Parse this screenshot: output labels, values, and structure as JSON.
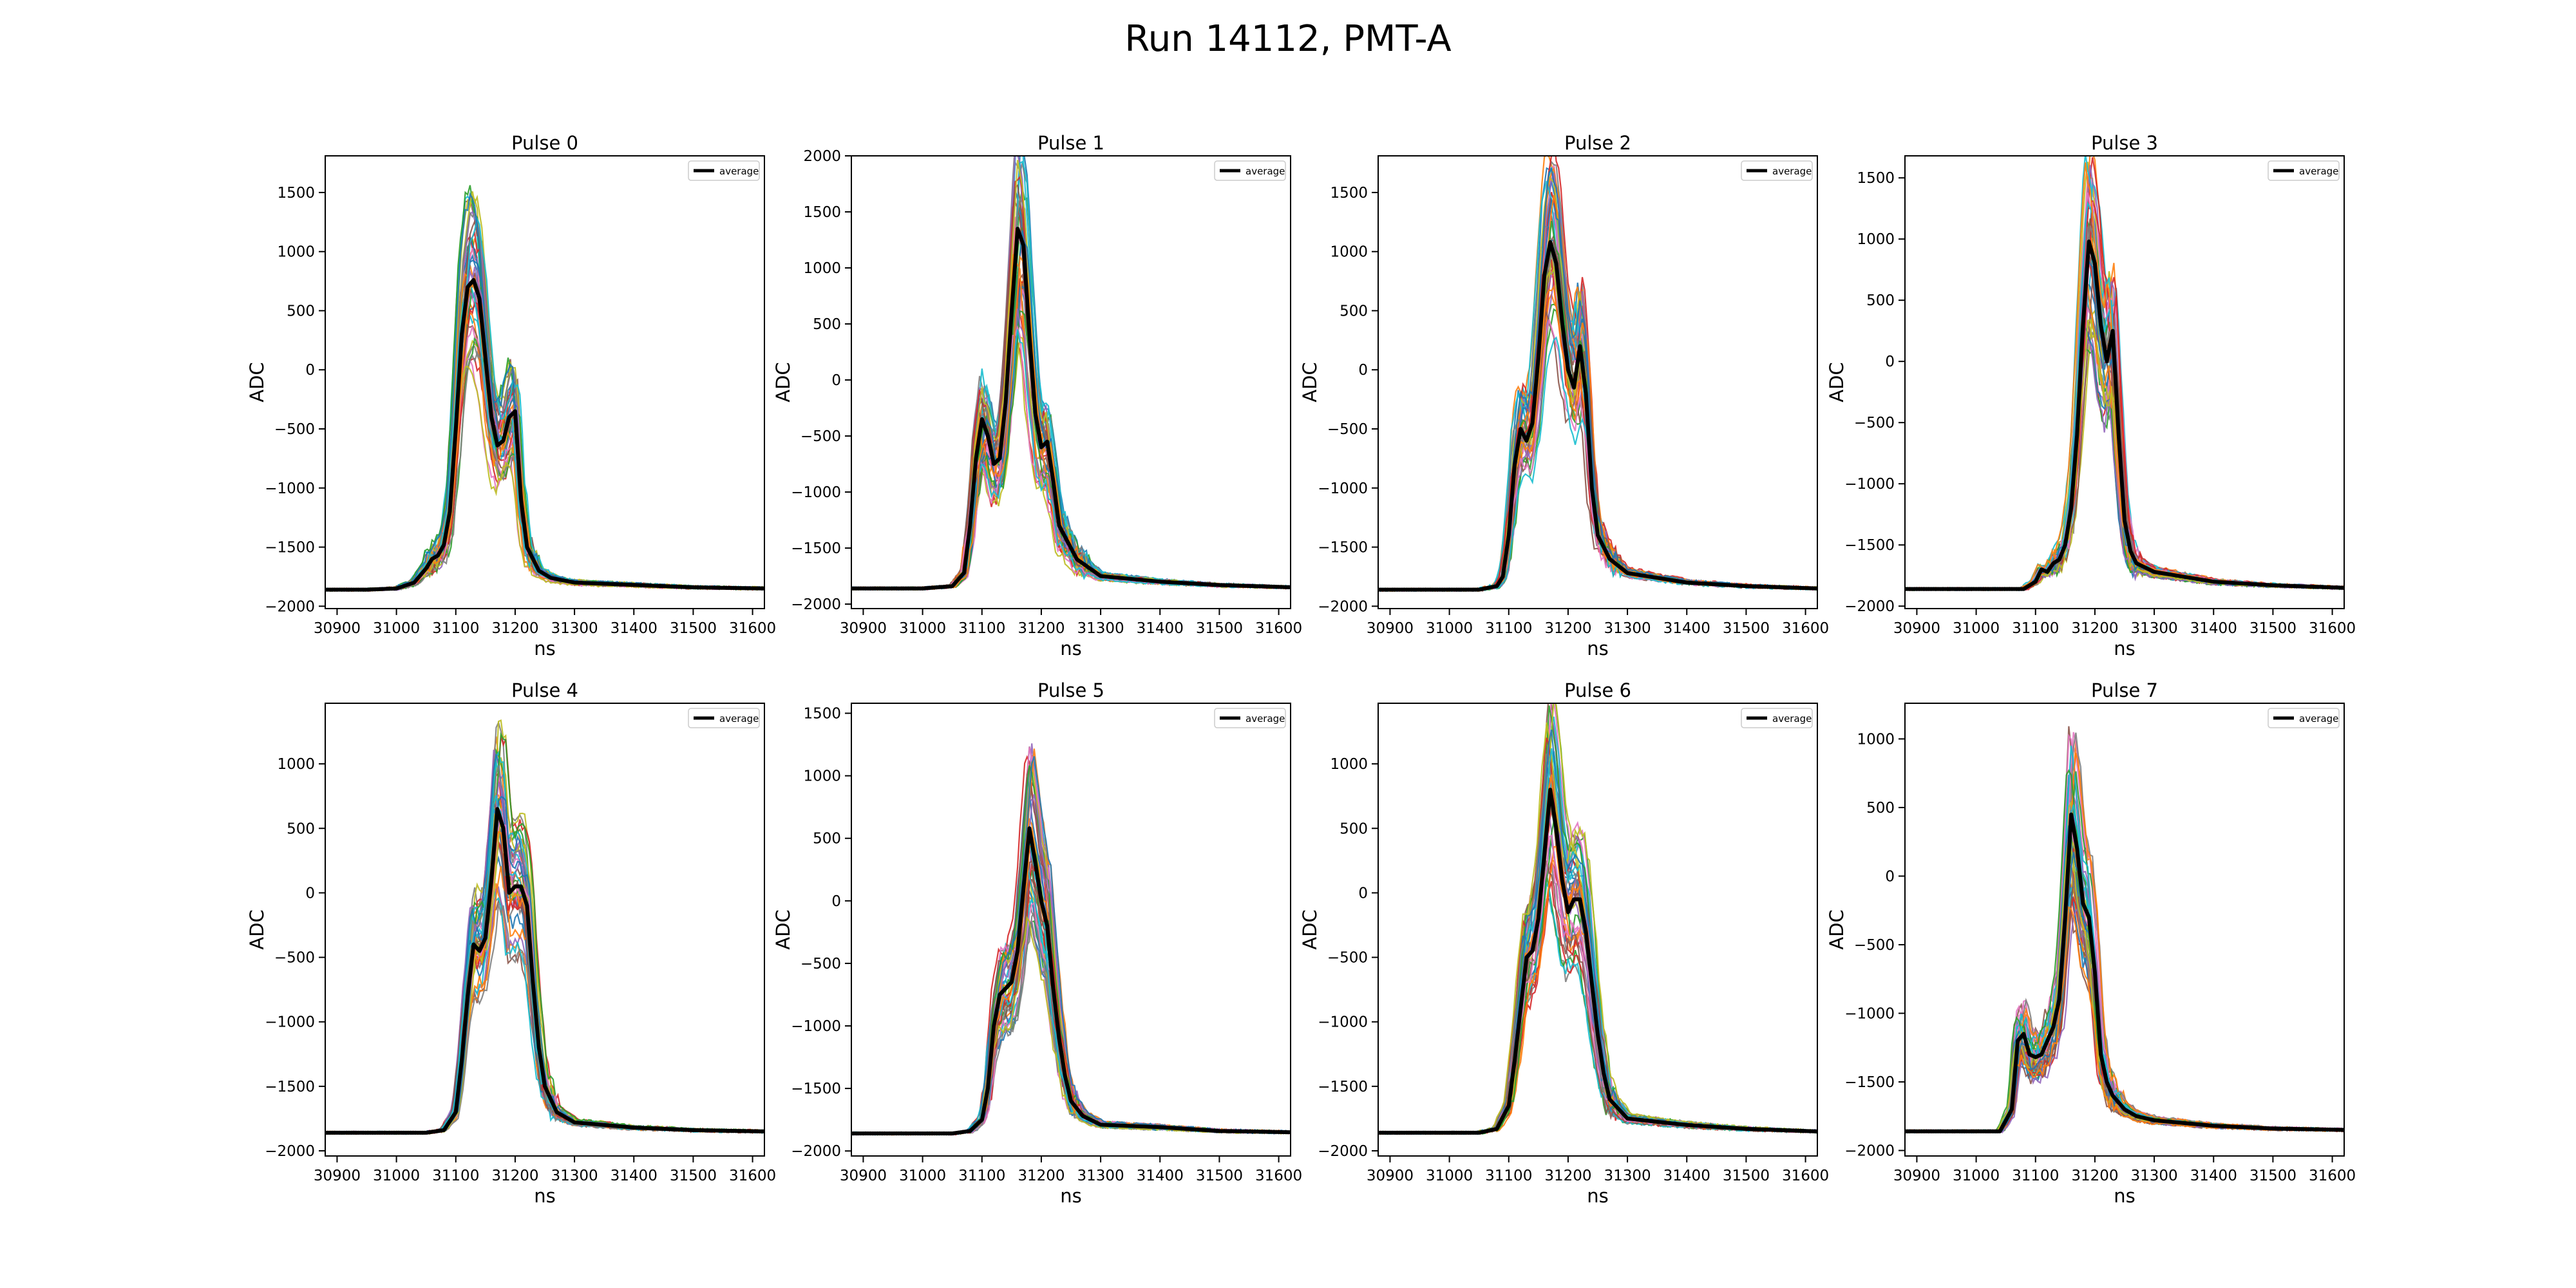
{
  "figure": {
    "title": "Run 14112, PMT-A"
  },
  "series_palette": [
    "#1f77b4",
    "#ff7f0e",
    "#2ca02c",
    "#d62728",
    "#9467bd",
    "#8c564b",
    "#e377c2",
    "#7f7f7f",
    "#bcbd22",
    "#17becf"
  ],
  "average_color": "#000000",
  "chart_data": [
    {
      "type": "line",
      "title": "Pulse 0",
      "xlabel": "ns",
      "ylabel": "ADC",
      "xlim": [
        30880,
        31620
      ],
      "ylim": [
        -2020,
        1810
      ],
      "xticks": [
        30900,
        31000,
        31100,
        31200,
        31300,
        31400,
        31500,
        31600
      ],
      "yticks": [
        -2000,
        -1500,
        -1000,
        -500,
        0,
        500,
        1000,
        1500
      ],
      "legend": {
        "entries": [
          "average"
        ],
        "placement": "top-right"
      },
      "average": {
        "name": "average",
        "x": [
          30880,
          30950,
          31000,
          31030,
          31050,
          31060,
          31070,
          31080,
          31090,
          31100,
          31110,
          31120,
          31130,
          31140,
          31150,
          31160,
          31170,
          31180,
          31190,
          31200,
          31210,
          31220,
          31240,
          31260,
          31300,
          31400,
          31500,
          31620
        ],
        "y": [
          -1860,
          -1860,
          -1850,
          -1800,
          -1680,
          -1600,
          -1570,
          -1480,
          -1200,
          -500,
          300,
          700,
          760,
          600,
          100,
          -400,
          -640,
          -600,
          -400,
          -350,
          -1100,
          -1500,
          -1700,
          -1760,
          -1800,
          -1820,
          -1840,
          -1850
        ]
      }
    },
    {
      "type": "line",
      "title": "Pulse 1",
      "xlabel": "ns",
      "ylabel": "ADC",
      "xlim": [
        30880,
        31620
      ],
      "ylim": [
        -2040,
        2000
      ],
      "xticks": [
        30900,
        31000,
        31100,
        31200,
        31300,
        31400,
        31500,
        31600
      ],
      "yticks": [
        -2000,
        -1500,
        -1000,
        -500,
        0,
        500,
        1000,
        1500,
        2000
      ],
      "legend": {
        "entries": [
          "average"
        ],
        "placement": "top-right"
      },
      "average": {
        "name": "average",
        "x": [
          30880,
          31000,
          31050,
          31070,
          31080,
          31090,
          31100,
          31110,
          31120,
          31130,
          31140,
          31150,
          31160,
          31170,
          31180,
          31190,
          31200,
          31210,
          31220,
          31230,
          31260,
          31300,
          31400,
          31500,
          31620
        ],
        "y": [
          -1860,
          -1860,
          -1840,
          -1720,
          -1300,
          -700,
          -350,
          -500,
          -750,
          -700,
          -200,
          600,
          1350,
          1200,
          400,
          -300,
          -600,
          -550,
          -900,
          -1300,
          -1600,
          -1750,
          -1800,
          -1830,
          -1850
        ]
      }
    },
    {
      "type": "line",
      "title": "Pulse 2",
      "xlabel": "ns",
      "ylabel": "ADC",
      "xlim": [
        30880,
        31620
      ],
      "ylim": [
        -2020,
        1810
      ],
      "xticks": [
        30900,
        31000,
        31100,
        31200,
        31300,
        31400,
        31500,
        31600
      ],
      "yticks": [
        -2000,
        -1500,
        -1000,
        -500,
        0,
        500,
        1000,
        1500
      ],
      "legend": {
        "entries": [
          "average"
        ],
        "placement": "top-right"
      },
      "average": {
        "name": "average",
        "x": [
          30880,
          31050,
          31080,
          31090,
          31100,
          31110,
          31120,
          31130,
          31140,
          31150,
          31160,
          31170,
          31180,
          31190,
          31200,
          31210,
          31220,
          31230,
          31240,
          31250,
          31270,
          31300,
          31400,
          31500,
          31620
        ],
        "y": [
          -1860,
          -1860,
          -1830,
          -1750,
          -1400,
          -800,
          -500,
          -600,
          -450,
          100,
          800,
          1080,
          900,
          400,
          0,
          -150,
          200,
          -200,
          -1000,
          -1400,
          -1600,
          -1720,
          -1800,
          -1830,
          -1850
        ]
      }
    },
    {
      "type": "line",
      "title": "Pulse 3",
      "xlabel": "ns",
      "ylabel": "ADC",
      "xlim": [
        30880,
        31620
      ],
      "ylim": [
        -2020,
        1680
      ],
      "xticks": [
        30900,
        31000,
        31100,
        31200,
        31300,
        31400,
        31500,
        31600
      ],
      "yticks": [
        -2000,
        -1500,
        -1000,
        -500,
        0,
        500,
        1000,
        1500
      ],
      "legend": {
        "entries": [
          "average"
        ],
        "placement": "top-right"
      },
      "average": {
        "name": "average",
        "x": [
          30880,
          31080,
          31100,
          31110,
          31120,
          31130,
          31140,
          31150,
          31160,
          31170,
          31180,
          31190,
          31200,
          31210,
          31220,
          31230,
          31240,
          31250,
          31260,
          31270,
          31300,
          31400,
          31500,
          31620
        ],
        "y": [
          -1860,
          -1860,
          -1800,
          -1700,
          -1720,
          -1650,
          -1620,
          -1500,
          -1200,
          -600,
          300,
          980,
          800,
          300,
          0,
          250,
          -600,
          -1300,
          -1550,
          -1650,
          -1720,
          -1800,
          -1830,
          -1850
        ]
      }
    },
    {
      "type": "line",
      "title": "Pulse 4",
      "xlabel": "ns",
      "ylabel": "ADC",
      "xlim": [
        30880,
        31620
      ],
      "ylim": [
        -2040,
        1470
      ],
      "xticks": [
        30900,
        31000,
        31100,
        31200,
        31300,
        31400,
        31500,
        31600
      ],
      "yticks": [
        -2000,
        -1500,
        -1000,
        -500,
        0,
        500,
        1000
      ],
      "legend": {
        "entries": [
          "average"
        ],
        "placement": "top-right"
      },
      "average": {
        "name": "average",
        "x": [
          30880,
          31050,
          31080,
          31100,
          31110,
          31120,
          31130,
          31140,
          31150,
          31160,
          31170,
          31180,
          31190,
          31200,
          31210,
          31220,
          31230,
          31240,
          31250,
          31270,
          31300,
          31400,
          31500,
          31620
        ],
        "y": [
          -1860,
          -1860,
          -1840,
          -1700,
          -1300,
          -800,
          -400,
          -450,
          -350,
          100,
          650,
          500,
          0,
          50,
          50,
          -100,
          -700,
          -1200,
          -1500,
          -1700,
          -1780,
          -1820,
          -1840,
          -1850
        ]
      }
    },
    {
      "type": "line",
      "title": "Pulse 5",
      "xlabel": "ns",
      "ylabel": "ADC",
      "xlim": [
        30880,
        31620
      ],
      "ylim": [
        -2040,
        1580
      ],
      "xticks": [
        30900,
        31000,
        31100,
        31200,
        31300,
        31400,
        31500,
        31600
      ],
      "yticks": [
        -2000,
        -1500,
        -1000,
        -500,
        0,
        500,
        1000,
        1500
      ],
      "legend": {
        "entries": [
          "average"
        ],
        "placement": "top-right"
      },
      "average": {
        "name": "average",
        "x": [
          30880,
          31050,
          31080,
          31100,
          31110,
          31120,
          31130,
          31140,
          31150,
          31160,
          31170,
          31180,
          31190,
          31200,
          31210,
          31220,
          31230,
          31240,
          31250,
          31270,
          31300,
          31400,
          31500,
          31620
        ],
        "y": [
          -1860,
          -1860,
          -1840,
          -1750,
          -1500,
          -1000,
          -750,
          -700,
          -650,
          -400,
          100,
          580,
          300,
          0,
          -200,
          -700,
          -1100,
          -1400,
          -1600,
          -1720,
          -1790,
          -1810,
          -1840,
          -1850
        ]
      }
    },
    {
      "type": "line",
      "title": "Pulse 6",
      "xlabel": "ns",
      "ylabel": "ADC",
      "xlim": [
        30880,
        31620
      ],
      "ylim": [
        -2040,
        1470
      ],
      "xticks": [
        30900,
        31000,
        31100,
        31200,
        31300,
        31400,
        31500,
        31600
      ],
      "yticks": [
        -2000,
        -1500,
        -1000,
        -500,
        0,
        500,
        1000
      ],
      "legend": {
        "entries": [
          "average"
        ],
        "placement": "top-right"
      },
      "average": {
        "name": "average",
        "x": [
          30880,
          31050,
          31080,
          31100,
          31110,
          31120,
          31130,
          31140,
          31150,
          31160,
          31170,
          31180,
          31190,
          31200,
          31210,
          31220,
          31230,
          31240,
          31250,
          31260,
          31270,
          31300,
          31400,
          31500,
          31620
        ],
        "y": [
          -1860,
          -1860,
          -1830,
          -1650,
          -1300,
          -900,
          -500,
          -450,
          -200,
          300,
          800,
          500,
          100,
          -150,
          -50,
          -50,
          -300,
          -700,
          -1100,
          -1400,
          -1600,
          -1750,
          -1800,
          -1830,
          -1850
        ]
      }
    },
    {
      "type": "line",
      "title": "Pulse 7",
      "xlabel": "ns",
      "ylabel": "ADC",
      "xlim": [
        30880,
        31620
      ],
      "ylim": [
        -2040,
        1260
      ],
      "xticks": [
        30900,
        31000,
        31100,
        31200,
        31300,
        31400,
        31500,
        31600
      ],
      "yticks": [
        -2000,
        -1500,
        -1000,
        -500,
        0,
        500,
        1000
      ],
      "legend": {
        "entries": [
          "average"
        ],
        "placement": "top-right"
      },
      "average": {
        "name": "average",
        "x": [
          30880,
          31040,
          31060,
          31070,
          31080,
          31090,
          31100,
          31110,
          31120,
          31130,
          31140,
          31150,
          31160,
          31170,
          31180,
          31190,
          31200,
          31210,
          31220,
          31230,
          31250,
          31270,
          31300,
          31400,
          31500,
          31620
        ],
        "y": [
          -1860,
          -1860,
          -1700,
          -1200,
          -1150,
          -1300,
          -1320,
          -1300,
          -1200,
          -1100,
          -900,
          -300,
          450,
          200,
          -200,
          -300,
          -700,
          -1300,
          -1500,
          -1600,
          -1700,
          -1750,
          -1780,
          -1820,
          -1840,
          -1850
        ]
      }
    }
  ]
}
